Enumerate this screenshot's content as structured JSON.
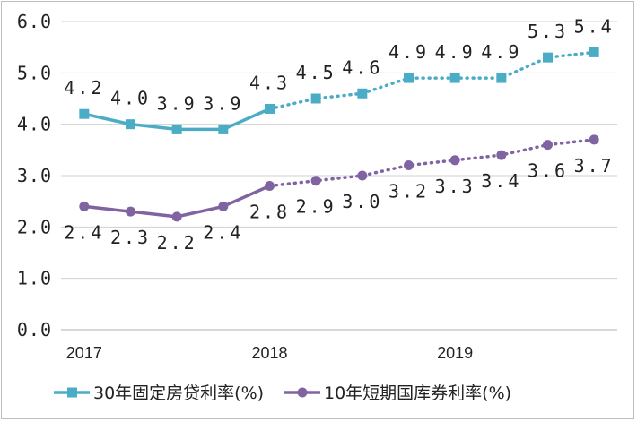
{
  "chart_data": {
    "type": "line",
    "x_positions": [
      "2017",
      "",
      "",
      "",
      "2018",
      "",
      "",
      "",
      "2019",
      "",
      "",
      ""
    ],
    "x_tick_labels": [
      "2017",
      "2018",
      "2019"
    ],
    "ylim": [
      0,
      6
    ],
    "y_ticks": [
      "0.0",
      "1.0",
      "2.0",
      "3.0",
      "4.0",
      "5.0",
      "6.0"
    ],
    "grid": true,
    "legend_position": "bottom",
    "solid_until_index": 4,
    "series": [
      {
        "name": "30年固定房贷利率(%)",
        "color": "#4bacc6",
        "marker": "square",
        "values": [
          4.2,
          4.0,
          3.9,
          3.9,
          4.3,
          4.5,
          4.6,
          4.9,
          4.9,
          4.9,
          5.3,
          5.4
        ],
        "labels": [
          "4.2",
          "4.0",
          "3.9",
          "3.9",
          "4.3",
          "4.5",
          "4.6",
          "4.9",
          "4.9",
          "4.9",
          "5.3",
          "5.4"
        ],
        "label_position": "above"
      },
      {
        "name": "10年短期国库券利率(%)",
        "color": "#8064a2",
        "marker": "circle",
        "values": [
          2.4,
          2.3,
          2.2,
          2.4,
          2.8,
          2.9,
          3.0,
          3.2,
          3.3,
          3.4,
          3.6,
          3.7
        ],
        "labels": [
          "2.4",
          "2.3",
          "2.2",
          "2.4",
          "2.8",
          "2.9",
          "3.0",
          "3.2",
          "3.3",
          "3.4",
          "3.6",
          "3.7"
        ],
        "label_position": "below"
      }
    ]
  }
}
